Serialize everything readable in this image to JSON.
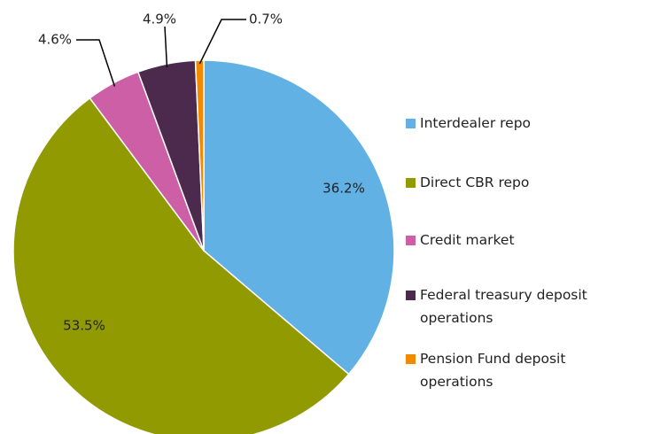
{
  "chart_data": {
    "type": "pie",
    "categories": [
      "Interdealer repo",
      "Direct CBR repo",
      "Credit market",
      "Federal treasury deposit operations",
      "Pension Fund deposit operations"
    ],
    "values": [
      36.2,
      53.5,
      4.6,
      4.9,
      0.7
    ],
    "value_labels": [
      "36.2%",
      "53.5%",
      "4.6%",
      "4.9%",
      "0.7%"
    ],
    "colors": [
      "#62b1e4",
      "#919a00",
      "#cc5fa5",
      "#4b2a4e",
      "#f18a00"
    ]
  }
}
